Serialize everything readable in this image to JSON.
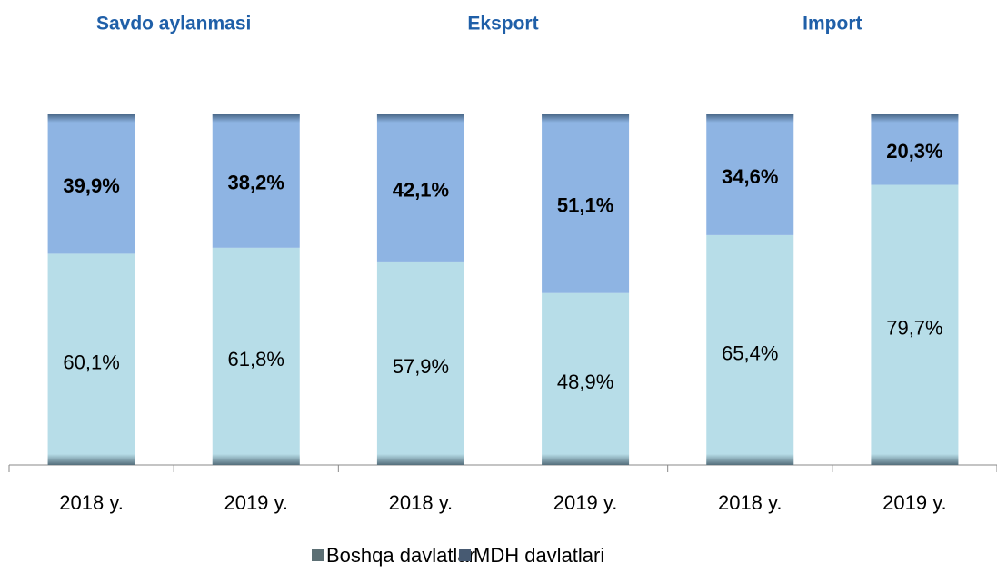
{
  "chart_data": {
    "type": "stacked_bar",
    "group_titles": [
      "Savdo aylanmasi",
      "Eksport",
      "Import"
    ],
    "categories": [
      "2018 y.",
      "2019 y.",
      "2018 y.",
      "2019 y.",
      "2018 y.",
      "2019 y."
    ],
    "series": [
      {
        "name": "Boshqa davlatlar",
        "color": "#b7dde8",
        "values": [
          60.1,
          61.8,
          57.9,
          48.9,
          65.4,
          79.7
        ],
        "value_labels": [
          "60,1%",
          "61,8%",
          "57,9%",
          "48,9%",
          "65,4%",
          "79,7%"
        ]
      },
      {
        "name": "MDH davlatlari",
        "color": "#8eb4e3",
        "values": [
          39.9,
          38.2,
          42.1,
          51.1,
          34.6,
          20.3
        ],
        "value_labels": [
          "39,9%",
          "38,2%",
          "42,1%",
          "51,1%",
          "34,6%",
          "20,3%"
        ]
      }
    ],
    "ylim": [
      0,
      100
    ]
  }
}
